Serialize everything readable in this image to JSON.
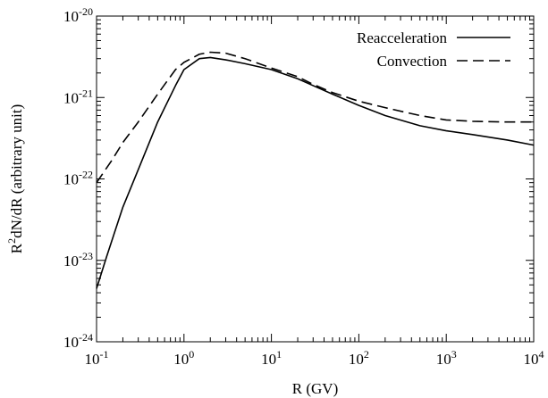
{
  "chart_data": {
    "type": "line",
    "xlabel": "R (GV)",
    "ylabel_base": "R",
    "ylabel_sup": "2",
    "ylabel_rest": "dN/dR (arbitrary unit)",
    "x_scale": "log",
    "y_scale": "log",
    "xlim": [
      0.1,
      10000
    ],
    "ylim": [
      1e-24,
      1e-20
    ],
    "x_ticks": [
      {
        "base": "10",
        "exp": "-1",
        "value": 0.1
      },
      {
        "base": "10",
        "exp": "0",
        "value": 1
      },
      {
        "base": "10",
        "exp": "1",
        "value": 10
      },
      {
        "base": "10",
        "exp": "2",
        "value": 100
      },
      {
        "base": "10",
        "exp": "3",
        "value": 1000
      },
      {
        "base": "10",
        "exp": "4",
        "value": 10000
      }
    ],
    "y_ticks": [
      {
        "base": "10",
        "exp": "-24",
        "value": 1e-24
      },
      {
        "base": "10",
        "exp": "-23",
        "value": 1e-23
      },
      {
        "base": "10",
        "exp": "-22",
        "value": 1e-22
      },
      {
        "base": "10",
        "exp": "-21",
        "value": 1e-21
      },
      {
        "base": "10",
        "exp": "-20",
        "value": 1e-20
      }
    ],
    "grid": false,
    "legend_position": "top-right",
    "series": [
      {
        "name": "Reacceleration",
        "style": "solid",
        "color": "#000000",
        "x": [
          0.1,
          0.13,
          0.2,
          0.3,
          0.5,
          0.8,
          1.0,
          1.5,
          2.0,
          3.0,
          5.0,
          10,
          20,
          30,
          50,
          100,
          200,
          500,
          1000,
          2000,
          5000,
          10000
        ],
        "y": [
          4.5e-24,
          1.1e-23,
          4.5e-23,
          1.3e-22,
          5e-22,
          1.4e-21,
          2.2e-21,
          3e-21,
          3.1e-21,
          2.9e-21,
          2.6e-21,
          2.2e-21,
          1.7e-21,
          1.4e-21,
          1.1e-21,
          8e-22,
          6e-22,
          4.5e-22,
          3.9e-22,
          3.5e-22,
          3e-22,
          2.6e-22
        ]
      },
      {
        "name": "Convection",
        "style": "dashed",
        "color": "#000000",
        "x": [
          0.1,
          0.15,
          0.2,
          0.3,
          0.5,
          0.8,
          1.0,
          1.5,
          2.0,
          3.0,
          5.0,
          10,
          20,
          30,
          50,
          100,
          200,
          500,
          1000,
          2000,
          5000,
          10000
        ],
        "y": [
          9e-23,
          1.7e-22,
          2.8e-22,
          5e-22,
          1.1e-21,
          2.2e-21,
          2.7e-21,
          3.4e-21,
          3.6e-21,
          3.5e-21,
          3e-21,
          2.3e-21,
          1.8e-21,
          1.45e-21,
          1.15e-21,
          9e-22,
          7.5e-22,
          6e-22,
          5.3e-22,
          5.1e-22,
          5e-22,
          5e-22
        ]
      }
    ]
  }
}
